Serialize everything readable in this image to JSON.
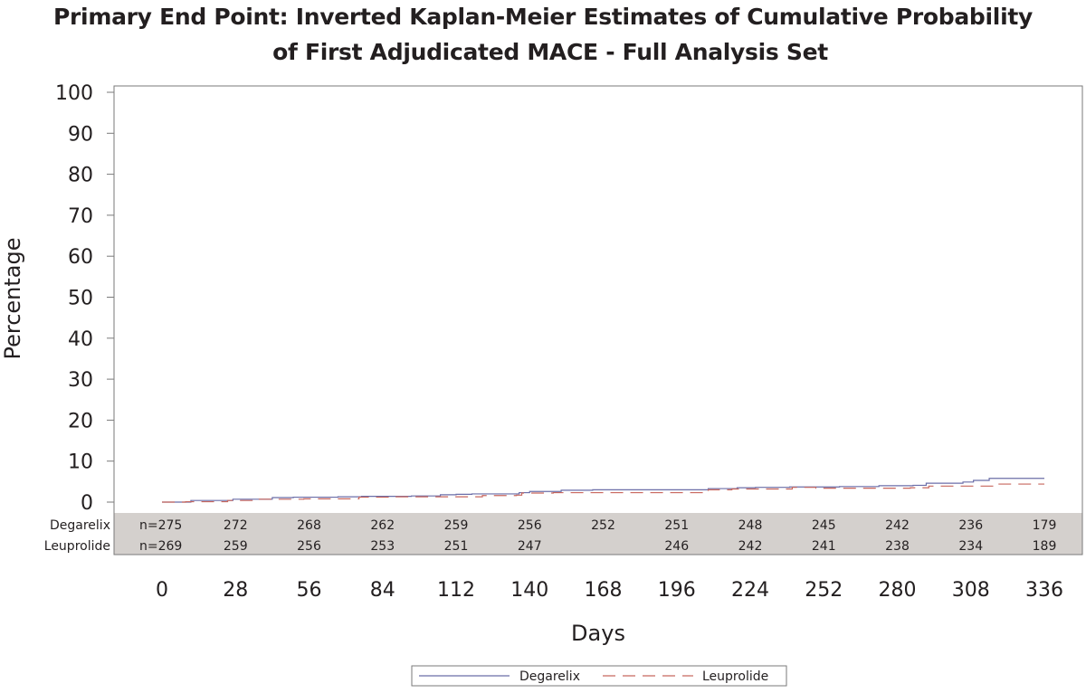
{
  "title_line1": "Primary End Point: Inverted Kaplan-Meier Estimates of Cumulative Probability",
  "title_line2": "of First Adjudicated MACE - Full Analysis Set",
  "chart_data": {
    "type": "line",
    "step": true,
    "title": "Primary End Point: Inverted Kaplan-Meier Estimates of Cumulative Probability of First Adjudicated MACE - Full Analysis Set",
    "xlabel": "Days",
    "ylabel": "Percentage",
    "xlim": [
      0,
      336
    ],
    "ylim": [
      0,
      100
    ],
    "x_ticks": [
      0,
      28,
      56,
      84,
      112,
      140,
      168,
      196,
      224,
      252,
      280,
      308,
      336
    ],
    "y_ticks": [
      0,
      10,
      20,
      30,
      40,
      50,
      60,
      70,
      80,
      90,
      100
    ],
    "grid": false,
    "legend_position": "bottom-center",
    "series": [
      {
        "name": "Degarelix",
        "color": "#6b6ea8",
        "line_style": "solid",
        "x": [
          0,
          11,
          27,
          42,
          50,
          67,
          76,
          95,
          106,
          112,
          118,
          136,
          140,
          152,
          164,
          208,
          219,
          226,
          239,
          258,
          273,
          286,
          291,
          305,
          309,
          315,
          336
        ],
        "y": [
          0,
          0.4,
          0.7,
          1.1,
          1.2,
          1.3,
          1.4,
          1.5,
          1.8,
          1.9,
          2.0,
          2.3,
          2.6,
          2.9,
          3.0,
          3.3,
          3.5,
          3.6,
          3.7,
          3.8,
          4.0,
          4.1,
          4.6,
          4.9,
          5.3,
          5.8,
          5.8
        ]
      },
      {
        "name": "Leuprolide",
        "color": "#c8675e",
        "line_style": "dashed",
        "x": [
          0,
          9,
          25,
          35,
          54,
          75,
          88,
          107,
          122,
          135,
          137,
          149,
          208,
          217,
          240,
          249,
          285,
          292,
          318,
          336
        ],
        "y": [
          0,
          0.1,
          0.4,
          0.7,
          0.8,
          1.2,
          1.3,
          1.3,
          1.6,
          1.7,
          2.2,
          2.3,
          3.0,
          3.2,
          3.6,
          3.4,
          3.5,
          3.9,
          4.4,
          4.4
        ]
      }
    ],
    "risk_table": {
      "rows": [
        {
          "label": "Degarelix",
          "cells": [
            {
              "day": 0,
              "text": "n=275"
            },
            {
              "day": 28,
              "text": "272"
            },
            {
              "day": 56,
              "text": "268"
            },
            {
              "day": 84,
              "text": "262"
            },
            {
              "day": 112,
              "text": "259"
            },
            {
              "day": 140,
              "text": "256"
            },
            {
              "day": 168,
              "text": "252"
            },
            {
              "day": 196,
              "text": "251"
            },
            {
              "day": 224,
              "text": "248"
            },
            {
              "day": 252,
              "text": "245"
            },
            {
              "day": 280,
              "text": "242"
            },
            {
              "day": 308,
              "text": "236"
            },
            {
              "day": 336,
              "text": "179"
            }
          ]
        },
        {
          "label": "Leuprolide",
          "cells": [
            {
              "day": 0,
              "text": "n=269"
            },
            {
              "day": 28,
              "text": "259"
            },
            {
              "day": 56,
              "text": "256"
            },
            {
              "day": 84,
              "text": "253"
            },
            {
              "day": 112,
              "text": "251"
            },
            {
              "day": 140,
              "text": "247"
            },
            {
              "day": 196,
              "text": "246"
            },
            {
              "day": 224,
              "text": "242"
            },
            {
              "day": 252,
              "text": "241"
            },
            {
              "day": 280,
              "text": "238"
            },
            {
              "day": 308,
              "text": "234"
            },
            {
              "day": 336,
              "text": "189"
            }
          ]
        }
      ]
    }
  }
}
